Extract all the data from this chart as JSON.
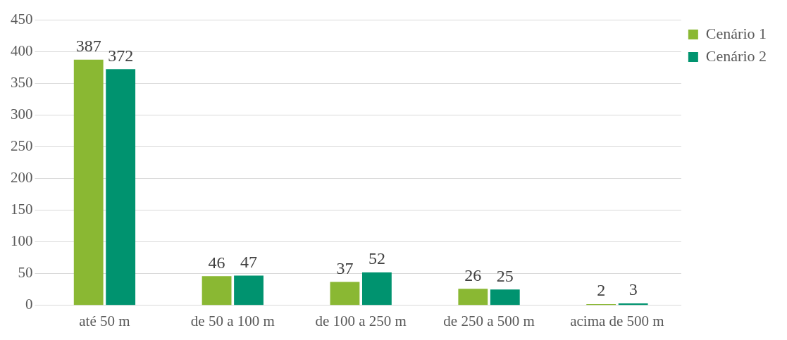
{
  "chart_data": {
    "type": "bar",
    "categories": [
      "até 50 m",
      "de 50 a 100 m",
      "de 100 a 250 m",
      "de 250 a 500 m",
      "acima de 500 m"
    ],
    "series": [
      {
        "name": "Cenário 1",
        "color": "#8ab833",
        "values": [
          387,
          46,
          37,
          26,
          2
        ]
      },
      {
        "name": "Cenário 2",
        "color": "#00936f",
        "values": [
          372,
          47,
          52,
          25,
          3
        ]
      }
    ],
    "ylim": [
      0,
      450
    ],
    "yticks": [
      0,
      50,
      100,
      150,
      200,
      250,
      300,
      350,
      400,
      450
    ],
    "grid": "y",
    "legend": "right",
    "data_labels": true
  }
}
